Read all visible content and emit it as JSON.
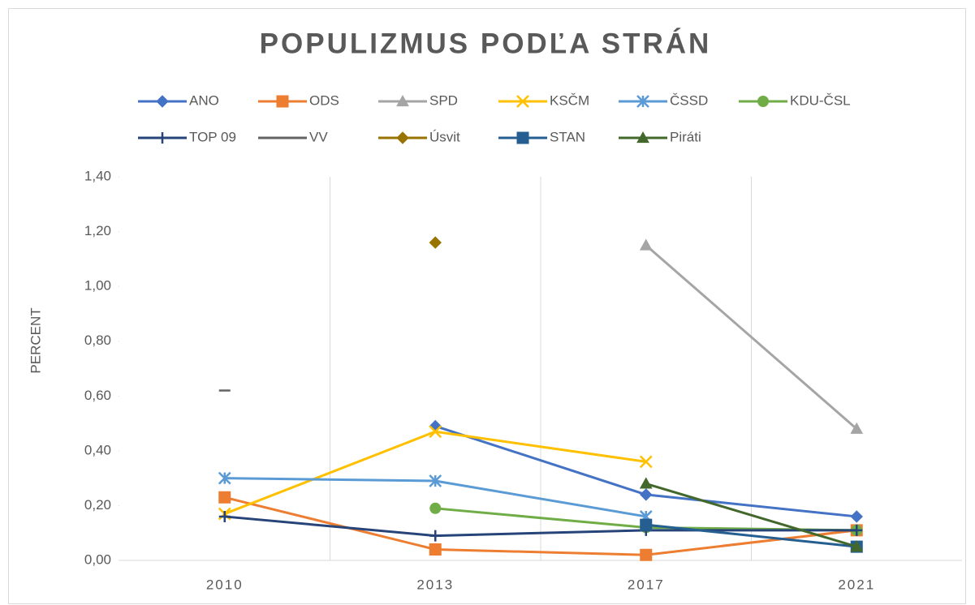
{
  "chart_data": {
    "type": "line",
    "title": "POPULIZMUS PODĽA STRÁN",
    "y_label": "PERCENT",
    "categories": [
      "2010",
      "2013",
      "2017",
      "2021"
    ],
    "ylim": [
      0,
      1.4
    ],
    "yticks": [
      {
        "value": 0,
        "label": "0,00"
      },
      {
        "value": 0.2,
        "label": "0,20"
      },
      {
        "value": 0.4,
        "label": "0,40"
      },
      {
        "value": 0.6,
        "label": "0,60"
      },
      {
        "value": 0.8,
        "label": "0,80"
      },
      {
        "value": 1.0,
        "label": "1,00"
      },
      {
        "value": 1.2,
        "label": "1,20"
      },
      {
        "value": 1.4,
        "label": "1,40"
      }
    ],
    "grid": "x",
    "legend": "top",
    "series": [
      {
        "name": "ANO",
        "color": "#4472c4",
        "marker": "diamond",
        "values": [
          null,
          0.49,
          0.24,
          0.16
        ]
      },
      {
        "name": "ODS",
        "color": "#ed7d31",
        "marker": "square",
        "values": [
          0.23,
          0.04,
          0.02,
          0.11
        ]
      },
      {
        "name": "SPD",
        "color": "#a5a5a5",
        "marker": "triangle",
        "values": [
          null,
          null,
          1.15,
          0.48
        ]
      },
      {
        "name": "KSČM",
        "color": "#ffc000",
        "marker": "x",
        "values": [
          0.17,
          0.47,
          0.36,
          null
        ]
      },
      {
        "name": "ČSSD",
        "color": "#5b9bd5",
        "marker": "asterisk",
        "values": [
          0.3,
          0.29,
          0.16,
          null
        ]
      },
      {
        "name": "KDU-ČSL",
        "color": "#70ad47",
        "marker": "circle",
        "values": [
          null,
          0.19,
          0.12,
          0.11
        ]
      },
      {
        "name": "TOP 09",
        "color": "#264478",
        "marker": "plus",
        "values": [
          0.16,
          0.09,
          0.11,
          0.11
        ]
      },
      {
        "name": "VV",
        "color": "#636363",
        "marker": "dash",
        "values": [
          0.62,
          null,
          null,
          null
        ]
      },
      {
        "name": "Úsvit",
        "color": "#997300",
        "marker": "diamond",
        "values": [
          null,
          1.16,
          null,
          null
        ]
      },
      {
        "name": "STAN",
        "color": "#255e91",
        "marker": "square",
        "values": [
          null,
          null,
          0.13,
          0.05
        ]
      },
      {
        "name": "Piráti",
        "color": "#43682b",
        "marker": "triangle",
        "values": [
          null,
          null,
          0.28,
          0.05
        ]
      }
    ]
  }
}
